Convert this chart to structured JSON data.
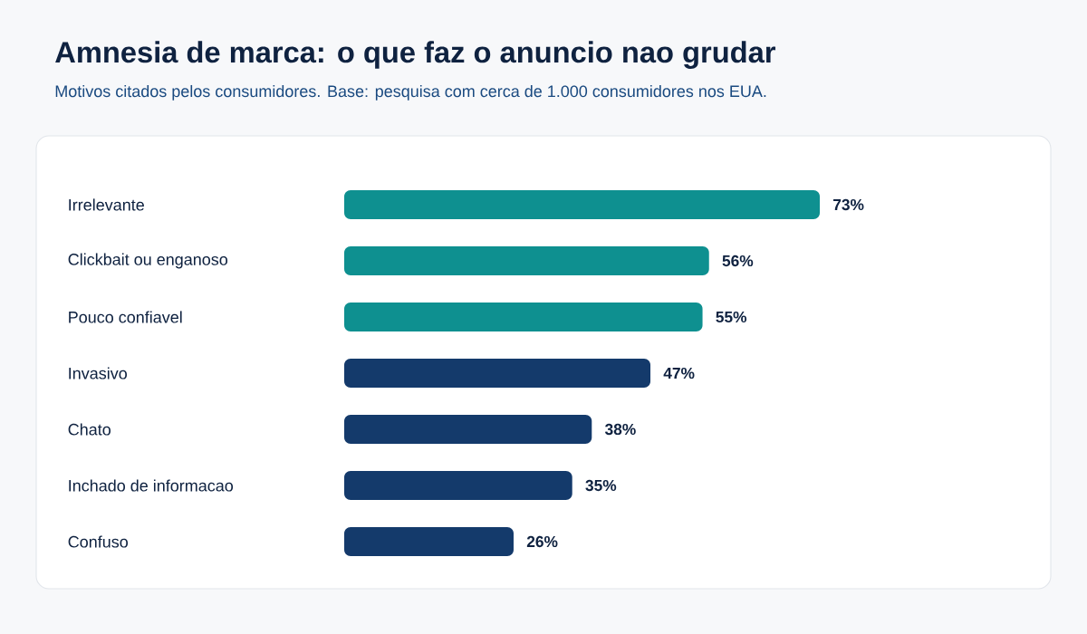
{
  "chart_data": {
    "type": "bar",
    "orientation": "horizontal",
    "title": "Amnesia de marca: o que faz o anuncio nao grudar",
    "subtitle": "Motivos citados pelos consumidores. Base: pesquisa com cerca de 1.000 consumidores nos EUA.",
    "categories": [
      "Irrelevante",
      "Clickbait ou enganoso",
      "Pouco confiavel",
      "Invasivo",
      "Chato",
      "Inchado de informacao",
      "Confuso"
    ],
    "values": [
      73,
      56,
      55,
      47,
      38,
      35,
      26
    ],
    "value_labels": [
      "73%",
      "56%",
      "55%",
      "47%",
      "38%",
      "35%",
      "26%"
    ],
    "colors": [
      "#0e9090",
      "#0e9090",
      "#0e9090",
      "#143a6b",
      "#143a6b",
      "#143a6b",
      "#143a6b"
    ]
  }
}
